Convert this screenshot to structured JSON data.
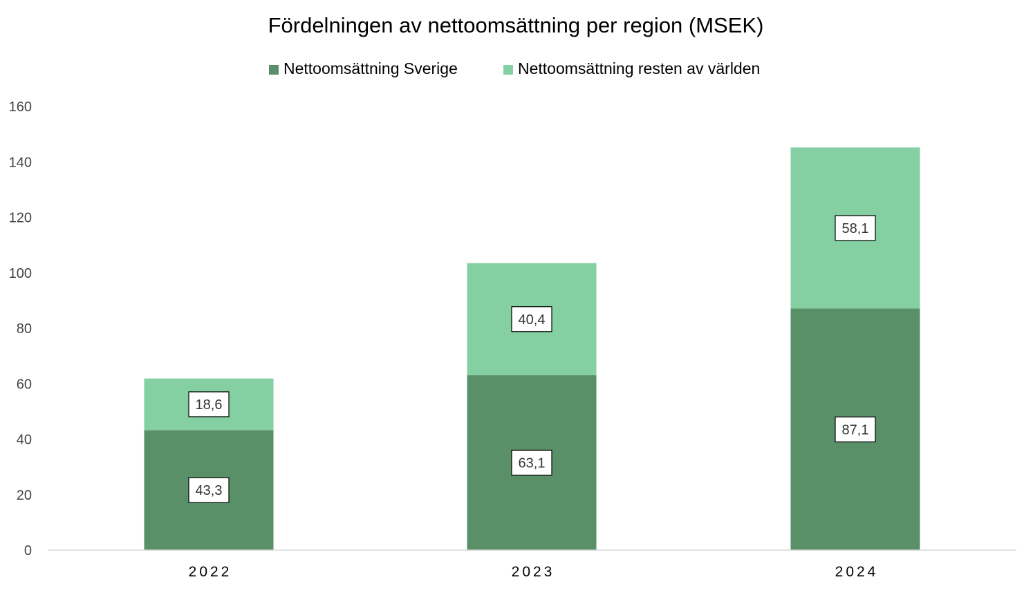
{
  "chart_data": {
    "type": "bar",
    "stacked": true,
    "title": "Fördelningen av nettoomsättning per region (MSEK)",
    "xlabel": "",
    "ylabel": "",
    "categories": [
      "2022",
      "2023",
      "2024"
    ],
    "series": [
      {
        "name": "Nettoomsättning Sverige",
        "color": "#5a9068",
        "values": [
          43.3,
          63.1,
          87.1
        ],
        "labels": [
          "43,3",
          "63,1",
          "87,1"
        ]
      },
      {
        "name": "Nettoomsättning resten av världen",
        "color": "#84d0a3",
        "values": [
          18.6,
          40.4,
          58.1
        ],
        "labels": [
          "18,6",
          "40,4",
          "58,1"
        ]
      }
    ],
    "ylim": [
      0,
      160
    ],
    "yticks": [
      "0",
      "20",
      "40",
      "60",
      "80",
      "100",
      "120",
      "140",
      "160"
    ],
    "grid": false,
    "legend_position": "top-center"
  }
}
